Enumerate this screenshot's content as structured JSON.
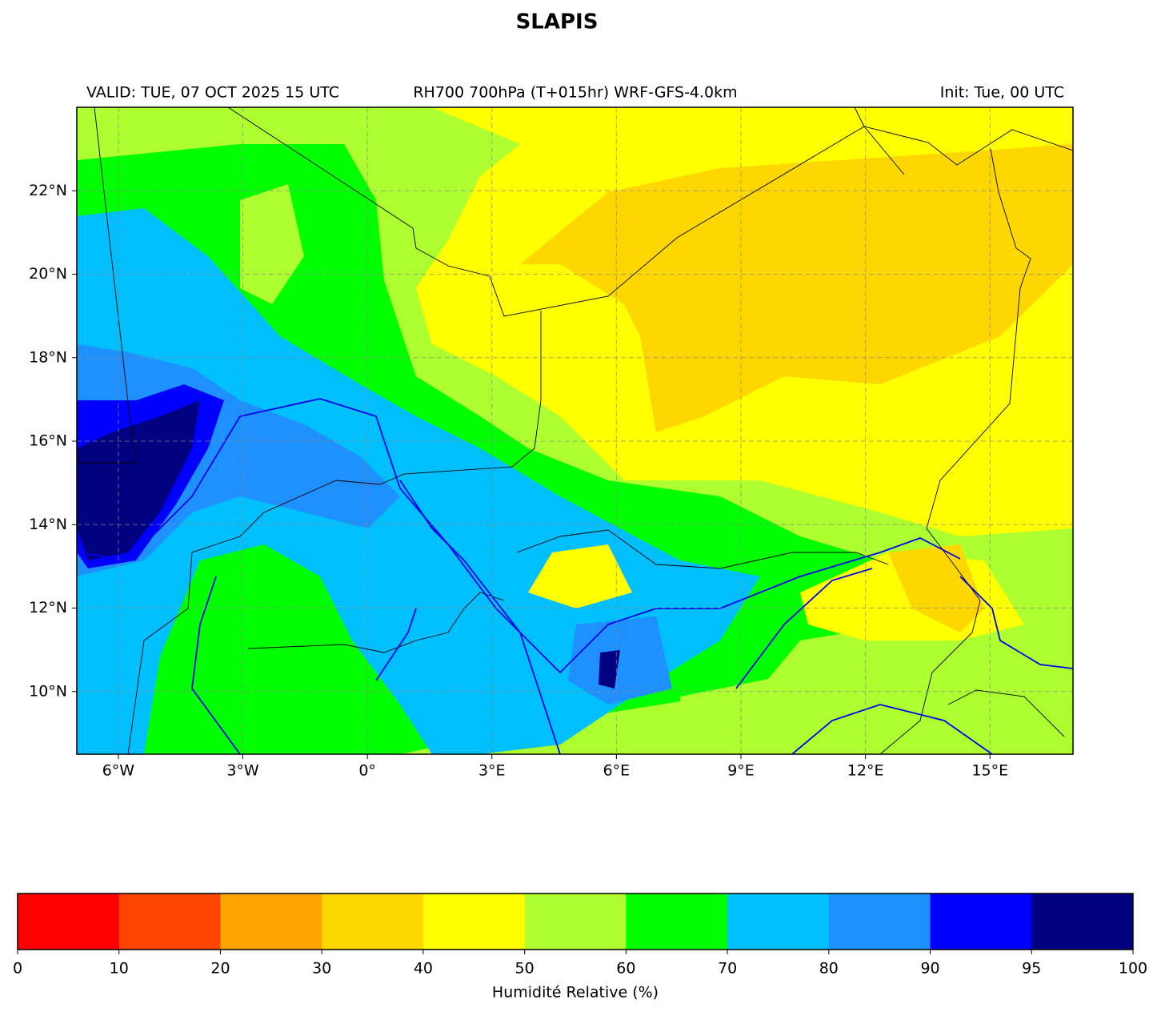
{
  "title": "SLAPIS",
  "header": {
    "valid": "VALID: TUE, 07 OCT 2025 15 UTC",
    "product": "RH700 700hPa (T+015hr) WRF-GFS-4.0km",
    "init": "Init: Tue, 00 UTC"
  },
  "map": {
    "lon_lim": [
      -7,
      17
    ],
    "lat_lim": [
      8.5,
      24
    ],
    "lon_ticks": [
      {
        "value": -6,
        "label": "6°W"
      },
      {
        "value": -3,
        "label": "3°W"
      },
      {
        "value": 0,
        "label": "0°"
      },
      {
        "value": 3,
        "label": "3°E"
      },
      {
        "value": 6,
        "label": "6°E"
      },
      {
        "value": 9,
        "label": "9°E"
      },
      {
        "value": 12,
        "label": "12°E"
      },
      {
        "value": 15,
        "label": "15°E"
      }
    ],
    "lat_ticks": [
      {
        "value": 10,
        "label": "10°N"
      },
      {
        "value": 12,
        "label": "12°N"
      },
      {
        "value": 14,
        "label": "14°N"
      },
      {
        "value": 16,
        "label": "16°N"
      },
      {
        "value": 18,
        "label": "18°N"
      },
      {
        "value": 20,
        "label": "20°N"
      },
      {
        "value": 22,
        "label": "22°N"
      }
    ]
  },
  "colorbar": {
    "label": "Humidité Relative (%)",
    "ticks": [
      0,
      10,
      20,
      30,
      40,
      50,
      60,
      70,
      80,
      90,
      95,
      100
    ],
    "colors": [
      "#ff0000",
      "#ff4500",
      "#ffa500",
      "#ffd700",
      "#ffff00",
      "#adff2f",
      "#00ff00",
      "#00bfff",
      "#1e90ff",
      "#0000ff",
      "#000080"
    ]
  }
}
